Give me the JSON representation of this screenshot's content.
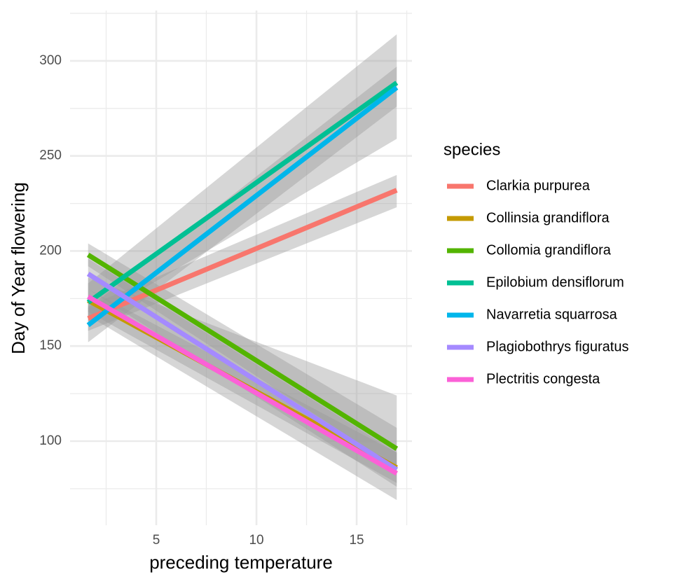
{
  "chart_data": {
    "type": "line",
    "xlabel": "preceding temperature",
    "ylabel": "Day of Year flowering",
    "legend_title": "species",
    "legend_position": "right",
    "grid": true,
    "band_color": "#999999",
    "xlim": [
      0.7,
      17.76
    ],
    "ylim": [
      55.8,
      326.5
    ],
    "xticks": [
      5,
      10,
      15
    ],
    "yticks": [
      100,
      150,
      200,
      250,
      300
    ],
    "x_minor_ticks": [
      2.5,
      7.5,
      12.5,
      17.5
    ],
    "y_minor_ticks": [
      75,
      125,
      175,
      225,
      275,
      325
    ],
    "x": [
      1.6,
      17
    ],
    "series": [
      {
        "name": "Clarkia purpurea",
        "color": "#F8766D",
        "values": [
          164.5,
          232
        ],
        "lower": [
          158,
          223
        ],
        "upper": [
          171,
          240
        ]
      },
      {
        "name": "Collinsia grandiflora",
        "color": "#C49A00",
        "values": [
          174,
          86
        ],
        "lower": [
          168,
          78
        ],
        "upper": [
          180,
          94
        ]
      },
      {
        "name": "Collomia grandiflora",
        "color": "#53B400",
        "values": [
          198,
          96
        ],
        "lower": [
          192,
          86
        ],
        "upper": [
          204,
          107
        ]
      },
      {
        "name": "Epilobium densiflorum",
        "color": "#00C094",
        "values": [
          173,
          288.5
        ],
        "lower": [
          163,
          259
        ],
        "upper": [
          183,
          314
        ]
      },
      {
        "name": "Navarretia squarrosa",
        "color": "#00B6EB",
        "values": [
          161,
          286
        ],
        "lower": [
          152,
          276
        ],
        "upper": [
          170,
          297
        ]
      },
      {
        "name": "Plagiobothrys figuratus",
        "color": "#A58AFF",
        "values": [
          188,
          85
        ],
        "lower": [
          180,
          76
        ],
        "upper": [
          196,
          94
        ]
      },
      {
        "name": "Plectritis congesta",
        "color": "#FB61D7",
        "values": [
          176,
          83
        ],
        "lower": [
          166,
          69
        ],
        "upper": [
          186,
          124
        ]
      }
    ]
  }
}
